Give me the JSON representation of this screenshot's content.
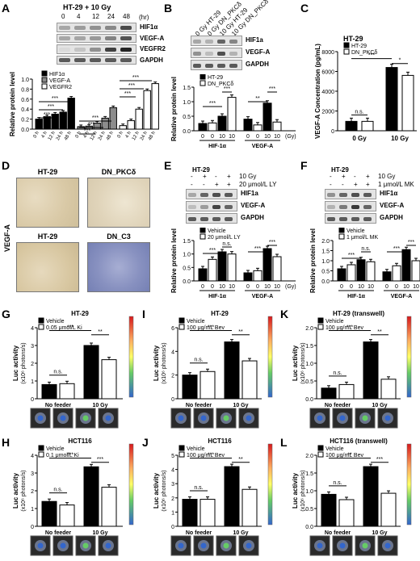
{
  "panels": {
    "A": {
      "letter": "A",
      "title": "HT-29 + 10 Gy",
      "times": [
        "0",
        "4",
        "12",
        "24",
        "48"
      ],
      "unit": "(hr)",
      "blot_labels": [
        "HIF1α",
        "VEGF-A",
        "VEGFR2",
        "GAPDH"
      ],
      "chart": {
        "type": "bar",
        "ylabel": "Relative protein level",
        "yticks": [
          "0.0",
          "0.2",
          "0.4",
          "0.6",
          "0.8",
          "1.0"
        ],
        "ylim": [
          0,
          1.0
        ],
        "categories": [
          "0 h",
          "4 h",
          "12 h",
          "24 h",
          "48 h",
          "0 h",
          "4 h",
          "12 h",
          "24 h",
          "48 h",
          "0 h",
          "4 h",
          "12 h",
          "24 h",
          "48 h"
        ],
        "legend": [
          "HIF1α",
          "VEGF-A",
          "VEGFR2"
        ],
        "series": [
          {
            "name": "HIF1α",
            "color": "#000000",
            "values": [
              0.2,
              0.25,
              0.3,
              0.34,
              0.62
            ]
          },
          {
            "name": "VEGF-A",
            "color": "#8c8c8c",
            "values": [
              0.05,
              0.06,
              0.12,
              0.22,
              0.43
            ]
          },
          {
            "name": "VEGFR2",
            "color": "#ffffff",
            "values": [
              0.07,
              0.17,
              0.4,
              0.77,
              0.91
            ]
          }
        ],
        "sig": "***"
      }
    },
    "B": {
      "letter": "B",
      "lanes": [
        "0 Gy HT-29",
        "0 Gy DN_PKCδ",
        "10 Gy HT-29",
        "10 Gy DN_PKCδ"
      ],
      "blot_labels": [
        "HIF1a",
        "VEGF-A",
        "GAPDH"
      ],
      "chart": {
        "type": "bar",
        "ylabel": "Relative protein level",
        "yticks": [
          "0.0",
          "0.5",
          "1.0",
          "1.5"
        ],
        "ylim": [
          0,
          1.5
        ],
        "legend": [
          "HT-29",
          "DN_PKCδ"
        ],
        "xticks": [
          "0",
          "0",
          "10",
          "10",
          "0",
          "0",
          "10",
          "10"
        ],
        "groups": [
          "HIF-1α",
          "VEGF-A"
        ],
        "unit": "(Gy)",
        "values": [
          0.25,
          0.27,
          0.5,
          1.15,
          0.4,
          0.2,
          0.95,
          0.3
        ],
        "fills": [
          "#000000",
          "#ffffff",
          "#000000",
          "#ffffff",
          "#000000",
          "#ffffff",
          "#000000",
          "#ffffff"
        ],
        "sig": [
          "***",
          "***",
          "**",
          "***"
        ]
      }
    },
    "C": {
      "letter": "C",
      "title": "HT-29",
      "chart": {
        "type": "bar",
        "ylabel": "VEGF-A Concentration (pg/mL)",
        "yticks": [
          "0",
          "2000",
          "4000",
          "6000",
          "8000"
        ],
        "ylim": [
          0,
          8000
        ],
        "legend": [
          "HT-29",
          "DN_PKCδ"
        ],
        "groups": [
          "0 Gy",
          "10 Gy"
        ],
        "values": [
          950,
          950,
          6400,
          5600
        ],
        "fills": [
          "#000000",
          "#ffffff",
          "#000000",
          "#ffffff"
        ],
        "sig": [
          "n.s.",
          "***",
          "*"
        ]
      }
    },
    "D": {
      "letter": "D",
      "side_label": "VEGF-A",
      "titles": [
        "HT-29",
        "DN_PKCδ",
        "HT-29",
        "DN_C3"
      ]
    },
    "E": {
      "letter": "E",
      "title": "HT-29",
      "row1": [
        "-",
        "+",
        "-",
        "+"
      ],
      "row1_label": "10 Gy",
      "row2": [
        "-",
        "-",
        "+",
        "+"
      ],
      "row2_label": "20 μmol/L LY",
      "blot_labels": [
        "HIF1a",
        "VEGF-A",
        "GAPDH"
      ],
      "chart": {
        "type": "bar",
        "ylabel": "Relative protein level",
        "yticks": [
          "0.0",
          "0.5",
          "1.0",
          "1.5"
        ],
        "ylim": [
          0,
          1.5
        ],
        "legend": [
          "Vehicle",
          "20 μmol/L LY"
        ],
        "xticks": [
          "0",
          "0",
          "10",
          "10",
          "0",
          "0",
          "10",
          "10"
        ],
        "groups": [
          "HIF-1α",
          "VEGF-A"
        ],
        "unit": "(Gy)",
        "values": [
          0.45,
          0.8,
          1.08,
          1.0,
          0.3,
          0.38,
          1.2,
          0.9
        ],
        "fills": [
          "#000000",
          "#ffffff",
          "#000000",
          "#ffffff",
          "#000000",
          "#ffffff",
          "#000000",
          "#ffffff"
        ],
        "sig": [
          "***",
          "n.s.",
          "***",
          "***"
        ]
      }
    },
    "F": {
      "letter": "F",
      "title": "HT-29",
      "row1": [
        "-",
        "+",
        "-",
        "+"
      ],
      "row1_label": "10 Gy",
      "row2": [
        "-",
        "-",
        "+",
        "+"
      ],
      "row2_label": "1 μmol/L MK",
      "blot_labels": [
        "HIF1α",
        "VEGF-A",
        "GAPDH"
      ],
      "chart": {
        "type": "bar",
        "ylabel": "Relative protein level",
        "yticks": [
          "0.0",
          "0.5",
          "1.0",
          "1.5",
          "2.0"
        ],
        "ylim": [
          0,
          2.0
        ],
        "legend": [
          "Vehicle",
          "1 μmol/L MK"
        ],
        "xticks": [
          "0",
          "0",
          "10",
          "10",
          "0",
          "0",
          "10",
          "10"
        ],
        "groups": [
          "HIF-1α",
          "VEGF-A"
        ],
        "unit": "(Gy)",
        "values": [
          0.6,
          0.8,
          1.05,
          0.95,
          0.45,
          0.75,
          1.55,
          1.0
        ],
        "fills": [
          "#000000",
          "#ffffff",
          "#000000",
          "#ffffff",
          "#000000",
          "#ffffff",
          "#000000",
          "#ffffff"
        ],
        "sig": [
          "***",
          "n.s.",
          "***",
          "***"
        ]
      }
    },
    "G": {
      "letter": "G",
      "title": "HT-29",
      "legend": [
        "Vehicle",
        "0.05 μmol/L Ki"
      ],
      "ylabel": "Luc activity",
      "ylabel2": "(x10⁶ photons/s)",
      "yticks": [
        "0",
        "1",
        "2",
        "3",
        "4"
      ],
      "ylim": [
        0,
        4
      ],
      "groups": [
        "No feeder",
        "10 Gy"
      ],
      "values": [
        0.8,
        0.85,
        3.0,
        2.2
      ],
      "sig": [
        "n.s.",
        "***",
        "**"
      ]
    },
    "H": {
      "letter": "H",
      "title": "HCT116",
      "legend": [
        "Vehicle",
        "0.1 μmol/L Ki"
      ],
      "ylabel": "Luc activity",
      "ylabel2": "(x10⁶ photons/s)",
      "yticks": [
        "0",
        "1",
        "2",
        "3",
        "4"
      ],
      "ylim": [
        0,
        4
      ],
      "groups": [
        "No feeder",
        "10 Gy"
      ],
      "values": [
        1.4,
        1.2,
        3.35,
        2.2
      ],
      "sig": [
        "n.s.",
        "***",
        "***"
      ]
    },
    "I": {
      "letter": "I",
      "title": "HT-29",
      "legend": [
        "Vehicle",
        "100 μg/mL Bev"
      ],
      "ylabel": "Luc activity",
      "ylabel2": "(x10⁶ photons/s)",
      "yticks": [
        "0",
        "2",
        "4",
        "6"
      ],
      "ylim": [
        0,
        6
      ],
      "groups": [
        "No feeder",
        "10 Gy"
      ],
      "values": [
        2.0,
        2.3,
        4.8,
        3.2
      ],
      "sig": [
        "n.s.",
        "***",
        "**"
      ]
    },
    "J": {
      "letter": "J",
      "title": "HCT116",
      "legend": [
        "Vehicle",
        "100 μg/mL Bev"
      ],
      "ylabel": "Luc activity",
      "ylabel2": "(x10⁶ photons/s)",
      "yticks": [
        "0",
        "1",
        "2",
        "3",
        "4",
        "5"
      ],
      "ylim": [
        0,
        5
      ],
      "groups": [
        "No feeder",
        "10 Gy"
      ],
      "values": [
        1.9,
        1.9,
        4.2,
        2.6
      ],
      "sig": [
        "n.s.",
        "***",
        "**"
      ]
    },
    "K": {
      "letter": "K",
      "title": "HT-29 (transwell)",
      "legend": [
        "Vehicle",
        "100 μg/mL Bev"
      ],
      "ylabel": "Luc activity",
      "ylabel2": "(x10⁶ photons/s)",
      "yticks": [
        "0.0",
        "0.5",
        "1.0",
        "1.5",
        "2.0"
      ],
      "ylim": [
        0,
        2.0
      ],
      "groups": [
        "No feeder",
        "10 Gy"
      ],
      "values": [
        0.3,
        0.4,
        1.6,
        0.55
      ],
      "sig": [
        "n.s.",
        "***",
        "**"
      ]
    },
    "L": {
      "letter": "L",
      "title": "HCT116 (transwell)",
      "legend": [
        "Vehicle",
        "100 μg/mL Bev"
      ],
      "ylabel": "Luc activity",
      "ylabel2": "(x10⁶ photons/s)",
      "yticks": [
        "0.0",
        "0.5",
        "1.0",
        "1.5",
        "2.0"
      ],
      "ylim": [
        0,
        2.0
      ],
      "groups": [
        "No feeder",
        "10 Gy"
      ],
      "values": [
        0.9,
        0.75,
        1.68,
        0.93
      ],
      "sig": [
        "n.s.",
        "**",
        "***"
      ]
    }
  }
}
